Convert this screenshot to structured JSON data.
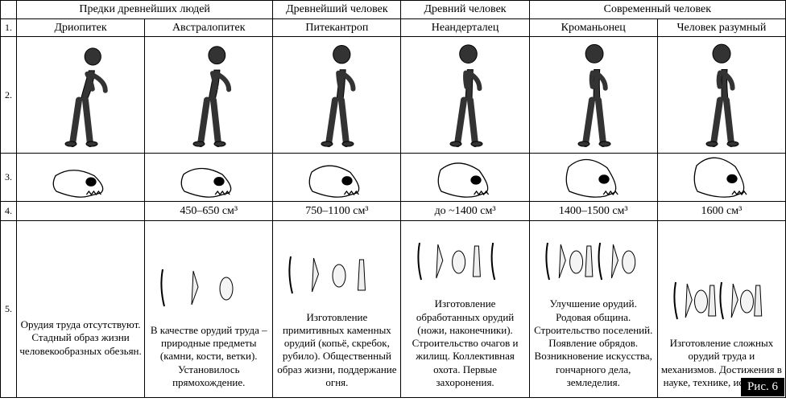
{
  "figure_label": "Рис. 6",
  "colors": {
    "bg": "#ffffff",
    "fg": "#000000",
    "border": "#000000"
  },
  "font": {
    "family": "Times New Roman",
    "header_size_pt": 14,
    "body_size_pt": 13
  },
  "table": {
    "row_numbers": [
      "1.",
      "2.",
      "3.",
      "4.",
      "5."
    ],
    "groups": [
      {
        "label": "Предки древнейших людей",
        "span": 2
      },
      {
        "label": "Древнейший человек",
        "span": 1
      },
      {
        "label": "Древний человек",
        "span": 1
      },
      {
        "label": "Современный человек",
        "span": 2
      }
    ],
    "columns": [
      {
        "species": "Дриопитек",
        "brain_volume": "",
        "description": "Орудия труда отсутствуют. Стадный образ жизни человекообразных обезьян.",
        "posture": 0.55,
        "has_tools_illustration": false,
        "skull_slope": 0.3
      },
      {
        "species": "Австралопитек",
        "brain_volume": "450–650 см³",
        "description": "В качестве орудий труда – природные предметы (камни, кости, ветки). Установилось прямохождение.",
        "posture": 0.7,
        "has_tools_illustration": true,
        "tool_count": 3,
        "skull_slope": 0.4
      },
      {
        "species": "Питекантроп",
        "brain_volume": "750–1100 см³",
        "description": "Изготовление примитивных каменных орудий (копьё, скребок, рубило). Общественный образ жизни, поддержание огня.",
        "posture": 0.82,
        "has_tools_illustration": true,
        "tool_count": 4,
        "skull_slope": 0.55
      },
      {
        "species": "Неандерталец",
        "brain_volume": "до ~1400 см³",
        "description": "Изготовление обработанных орудий (ножи, наконечники). Строительство очагов и жилищ. Коллективная охота. Первые захоронения.",
        "posture": 0.9,
        "has_tools_illustration": true,
        "tool_count": 5,
        "skull_slope": 0.7
      },
      {
        "species": "Кроманьонец",
        "brain_volume": "1400–1500 см³",
        "description": "Улучшение орудий. Родовая община. Строительство поселений. Появление обрядов. Возникновение искусства, гончарного дела, земледелия.",
        "posture": 0.97,
        "has_tools_illustration": true,
        "tool_count": 7,
        "skull_slope": 0.9
      },
      {
        "species": "Человек разумный",
        "brain_volume": "1600 см³",
        "description": "Изготовление сложных орудий труда и механизмов. Достижения в науке, технике, искусстве.",
        "posture": 1.0,
        "has_tools_illustration": true,
        "tool_count": 8,
        "skull_slope": 1.0
      }
    ]
  }
}
